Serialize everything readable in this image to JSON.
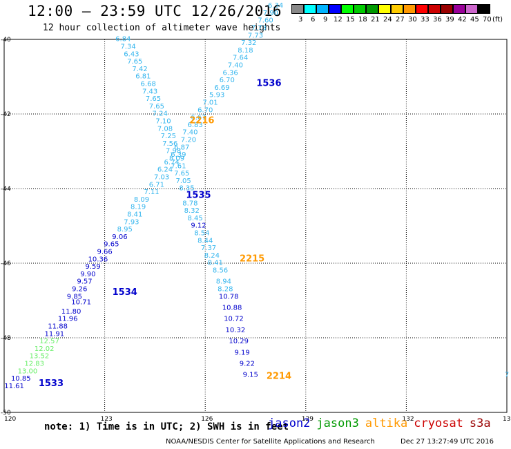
{
  "title": "12:00 – 23:59 UTC 12/26/2016",
  "subtitle": "12 hour collection of altimeter wave heights",
  "legend": {
    "units": "(ft)",
    "bins": [
      {
        "label": "3",
        "color": "#888888"
      },
      {
        "label": "6",
        "color": "#00ffff"
      },
      {
        "label": "9",
        "color": "#00b4ff"
      },
      {
        "label": "12",
        "color": "#0000ff"
      },
      {
        "label": "15",
        "color": "#00ff00"
      },
      {
        "label": "18",
        "color": "#00cc00"
      },
      {
        "label": "21",
        "color": "#009900"
      },
      {
        "label": "24",
        "color": "#ffff00"
      },
      {
        "label": "27",
        "color": "#ffcc00"
      },
      {
        "label": "30",
        "color": "#ff9900"
      },
      {
        "label": "33",
        "color": "#ff0000"
      },
      {
        "label": "36",
        "color": "#cc0000"
      },
      {
        "label": "39",
        "color": "#990000"
      },
      {
        "label": "42",
        "color": "#990099"
      },
      {
        "label": "45",
        "color": "#cc66cc"
      },
      {
        "label": "70",
        "color": "#000000"
      }
    ]
  },
  "axes": {
    "lon_ticks": [
      "120",
      "123",
      "126",
      "129",
      "132",
      "135"
    ],
    "lat_ticks": [
      "-40",
      "-42",
      "-44",
      "-46",
      "-48",
      "-50"
    ],
    "lon_range": [
      120,
      135
    ],
    "lat_range": [
      -40,
      -50
    ],
    "grid": true
  },
  "note": "note: 1) Time is in UTC; 2) SWH is in feet",
  "satellites": [
    {
      "name": "jason2",
      "color": "#0000cc"
    },
    {
      "name": "jason3",
      "color": "#009900"
    },
    {
      "name": "altika",
      "color": "#ff9900"
    },
    {
      "name": "cryosat",
      "color": "#cc0000"
    },
    {
      "name": "s3a",
      "color": "#990000"
    }
  ],
  "footer_left": "NOAA/NESDIS Center for Satellite Applications and Research",
  "footer_right": "Dec 27 13:27:49 UTC 2016",
  "colors": {
    "cyan": "#33b5ee",
    "blue": "#0000cc",
    "green": "#66ee66",
    "orange": "#ff9900"
  },
  "chart_data": {
    "type": "scatter",
    "tracks": [
      {
        "name": "ascending track",
        "points": [
          {
            "lon": 120.3,
            "lat": -49.35,
            "v": "11.61",
            "c": "blue"
          },
          {
            "lon": 120.5,
            "lat": -49.15,
            "v": "10.85",
            "c": "blue"
          },
          {
            "lon": 120.7,
            "lat": -48.95,
            "v": "13.00",
            "c": "green"
          },
          {
            "lon": 120.9,
            "lat": -48.75,
            "v": "12.83",
            "c": "green"
          },
          {
            "lon": 121.05,
            "lat": -48.55,
            "v": "13.52",
            "c": "green"
          },
          {
            "lon": 121.2,
            "lat": -48.35,
            "v": "12.02",
            "c": "green"
          },
          {
            "lon": 121.35,
            "lat": -48.15,
            "v": "12.57",
            "c": "green"
          },
          {
            "lon": 121.5,
            "lat": -47.95,
            "v": "11.91",
            "c": "blue"
          },
          {
            "lon": 121.6,
            "lat": -47.75,
            "v": "11.88",
            "c": "blue"
          },
          {
            "lon": 121.9,
            "lat": -47.55,
            "v": "11.96",
            "c": "blue"
          },
          {
            "lon": 122.0,
            "lat": -47.35,
            "v": "11.80",
            "c": "blue"
          },
          {
            "lon": 122.3,
            "lat": -47.1,
            "v": "10.71",
            "c": "blue"
          },
          {
            "lon": 122.1,
            "lat": -46.95,
            "v": "9.85",
            "c": "blue"
          },
          {
            "lon": 122.25,
            "lat": -46.75,
            "v": "9.26",
            "c": "blue"
          },
          {
            "lon": 122.4,
            "lat": -46.55,
            "v": "9.57",
            "c": "blue"
          },
          {
            "lon": 122.5,
            "lat": -46.35,
            "v": "9.90",
            "c": "blue"
          },
          {
            "lon": 122.65,
            "lat": -46.15,
            "v": "9.59",
            "c": "blue"
          },
          {
            "lon": 122.8,
            "lat": -45.95,
            "v": "10.36",
            "c": "blue"
          },
          {
            "lon": 123.0,
            "lat": -45.75,
            "v": "9.66",
            "c": "blue"
          },
          {
            "lon": 123.2,
            "lat": -45.55,
            "v": "9.65",
            "c": "blue"
          },
          {
            "lon": 123.45,
            "lat": -45.35,
            "v": "9.06",
            "c": "blue"
          },
          {
            "lon": 123.6,
            "lat": -45.15,
            "v": "8.95",
            "c": "cyan"
          },
          {
            "lon": 123.8,
            "lat": -44.95,
            "v": "7.93",
            "c": "cyan"
          },
          {
            "lon": 123.9,
            "lat": -44.75,
            "v": "8.41",
            "c": "cyan"
          },
          {
            "lon": 124.0,
            "lat": -44.55,
            "v": "8.19",
            "c": "cyan"
          },
          {
            "lon": 124.1,
            "lat": -44.35,
            "v": "8.09",
            "c": "cyan"
          },
          {
            "lon": 124.4,
            "lat": -44.15,
            "v": "7.11",
            "c": "cyan"
          },
          {
            "lon": 124.55,
            "lat": -43.95,
            "v": "6.71",
            "c": "cyan"
          },
          {
            "lon": 124.7,
            "lat": -43.75,
            "v": "7.03",
            "c": "cyan"
          },
          {
            "lon": 124.8,
            "lat": -43.55,
            "v": "6.24",
            "c": "cyan"
          },
          {
            "lon": 125.0,
            "lat": -43.35,
            "v": "6.74",
            "c": "cyan"
          },
          {
            "lon": 125.2,
            "lat": -43.15,
            "v": "6.39",
            "c": "cyan"
          },
          {
            "lon": 125.3,
            "lat": -42.95,
            "v": "6.87",
            "c": "cyan"
          },
          {
            "lon": 125.5,
            "lat": -42.75,
            "v": "7.20",
            "c": "cyan"
          },
          {
            "lon": 125.55,
            "lat": -42.55,
            "v": "7.40",
            "c": "cyan"
          },
          {
            "lon": 125.7,
            "lat": -42.35,
            "v": "6.83",
            "c": "cyan"
          },
          {
            "lon": 125.8,
            "lat": -42.15,
            "v": "6.67",
            "c": "cyan"
          },
          {
            "lon": 126.0,
            "lat": -41.95,
            "v": "6.70",
            "c": "cyan"
          },
          {
            "lon": 126.15,
            "lat": -41.75,
            "v": "7.01",
            "c": "cyan"
          },
          {
            "lon": 126.35,
            "lat": -41.55,
            "v": "5.93",
            "c": "cyan"
          },
          {
            "lon": 126.5,
            "lat": -41.35,
            "v": "6.69",
            "c": "cyan"
          },
          {
            "lon": 126.65,
            "lat": -41.15,
            "v": "6.70",
            "c": "cyan"
          },
          {
            "lon": 126.75,
            "lat": -40.95,
            "v": "6.36",
            "c": "cyan"
          },
          {
            "lon": 126.9,
            "lat": -40.75,
            "v": "7.40",
            "c": "cyan"
          },
          {
            "lon": 127.05,
            "lat": -40.55,
            "v": "7.64",
            "c": "cyan"
          },
          {
            "lon": 127.2,
            "lat": -40.35,
            "v": "8.18",
            "c": "cyan"
          },
          {
            "lon": 127.3,
            "lat": -40.15,
            "v": "7.32",
            "c": "cyan"
          },
          {
            "lon": 127.5,
            "lat": -39.95,
            "v": "7.73",
            "c": "cyan"
          },
          {
            "lon": 127.6,
            "lat": -39.75,
            "v": "7.73",
            "c": "cyan"
          },
          {
            "lon": 127.8,
            "lat": -39.55,
            "v": "7.60",
            "c": "cyan"
          },
          {
            "lon": 127.95,
            "lat": -39.35,
            "v": "7.90",
            "c": "cyan"
          },
          {
            "lon": 128.1,
            "lat": -39.15,
            "v": "6.34",
            "c": "cyan"
          }
        ]
      },
      {
        "name": "descending track",
        "points": [
          {
            "lon": 123.55,
            "lat": -40.05,
            "v": "6.84",
            "c": "cyan"
          },
          {
            "lon": 123.7,
            "lat": -40.25,
            "v": "7.34",
            "c": "cyan"
          },
          {
            "lon": 123.8,
            "lat": -40.45,
            "v": "6.43",
            "c": "cyan"
          },
          {
            "lon": 123.9,
            "lat": -40.65,
            "v": "7.65",
            "c": "cyan"
          },
          {
            "lon": 124.05,
            "lat": -40.85,
            "v": "7.42",
            "c": "cyan"
          },
          {
            "lon": 124.15,
            "lat": -41.05,
            "v": "6.81",
            "c": "cyan"
          },
          {
            "lon": 124.3,
            "lat": -41.25,
            "v": "6.68",
            "c": "cyan"
          },
          {
            "lon": 124.35,
            "lat": -41.45,
            "v": "7.43",
            "c": "cyan"
          },
          {
            "lon": 124.45,
            "lat": -41.65,
            "v": "7.65",
            "c": "cyan"
          },
          {
            "lon": 124.55,
            "lat": -41.85,
            "v": "7.65",
            "c": "cyan"
          },
          {
            "lon": 124.65,
            "lat": -42.05,
            "v": "7.24",
            "c": "cyan"
          },
          {
            "lon": 124.75,
            "lat": -42.25,
            "v": "7.10",
            "c": "cyan"
          },
          {
            "lon": 124.8,
            "lat": -42.45,
            "v": "7.08",
            "c": "cyan"
          },
          {
            "lon": 124.9,
            "lat": -42.65,
            "v": "7.25",
            "c": "cyan"
          },
          {
            "lon": 124.95,
            "lat": -42.85,
            "v": "7.56",
            "c": "cyan"
          },
          {
            "lon": 125.05,
            "lat": -43.05,
            "v": "7.98",
            "c": "cyan"
          },
          {
            "lon": 125.15,
            "lat": -43.25,
            "v": "8.09",
            "c": "cyan"
          },
          {
            "lon": 125.2,
            "lat": -43.45,
            "v": "7.61",
            "c": "cyan"
          },
          {
            "lon": 125.3,
            "lat": -43.65,
            "v": "7.65",
            "c": "cyan"
          },
          {
            "lon": 125.35,
            "lat": -43.85,
            "v": "7.05",
            "c": "cyan"
          },
          {
            "lon": 125.45,
            "lat": -44.05,
            "v": "8.35",
            "c": "cyan"
          },
          {
            "lon": 125.55,
            "lat": -44.45,
            "v": "8.78",
            "c": "cyan"
          },
          {
            "lon": 125.6,
            "lat": -44.65,
            "v": "8.32",
            "c": "cyan"
          },
          {
            "lon": 125.7,
            "lat": -44.85,
            "v": "8.45",
            "c": "cyan"
          },
          {
            "lon": 125.8,
            "lat": -45.05,
            "v": "9.12",
            "c": "blue"
          },
          {
            "lon": 125.9,
            "lat": -45.25,
            "v": "8.54",
            "c": "cyan"
          },
          {
            "lon": 126.0,
            "lat": -45.45,
            "v": "8.44",
            "c": "cyan"
          },
          {
            "lon": 126.1,
            "lat": -45.65,
            "v": "7.37",
            "c": "cyan"
          },
          {
            "lon": 126.2,
            "lat": -45.85,
            "v": "8.24",
            "c": "cyan"
          },
          {
            "lon": 126.3,
            "lat": -46.05,
            "v": "8.41",
            "c": "cyan"
          },
          {
            "lon": 126.45,
            "lat": -46.25,
            "v": "8.56",
            "c": "cyan"
          },
          {
            "lon": 126.55,
            "lat": -46.55,
            "v": "8.94",
            "c": "cyan"
          },
          {
            "lon": 126.6,
            "lat": -46.75,
            "v": "8.28",
            "c": "cyan"
          },
          {
            "lon": 126.7,
            "lat": -46.95,
            "v": "10.78",
            "c": "blue"
          },
          {
            "lon": 126.8,
            "lat": -47.25,
            "v": "10.88",
            "c": "blue"
          },
          {
            "lon": 126.85,
            "lat": -47.55,
            "v": "10.72",
            "c": "blue"
          },
          {
            "lon": 126.9,
            "lat": -47.85,
            "v": "10.32",
            "c": "blue"
          },
          {
            "lon": 127.0,
            "lat": -48.15,
            "v": "10.29",
            "c": "blue"
          },
          {
            "lon": 127.1,
            "lat": -48.45,
            "v": "9.19",
            "c": "blue"
          },
          {
            "lon": 127.25,
            "lat": -48.75,
            "v": "9.22",
            "c": "blue"
          },
          {
            "lon": 127.35,
            "lat": -49.05,
            "v": "9.15",
            "c": "blue"
          }
        ]
      },
      {
        "name": "edge point",
        "points": [
          {
            "lon": 135.0,
            "lat": -49.05,
            "v": "7",
            "c": "cyan"
          }
        ]
      }
    ],
    "time_labels": [
      {
        "lon": 121.4,
        "lat": -49.3,
        "v": "1533",
        "c": "blue"
      },
      {
        "lon": 123.6,
        "lat": -46.85,
        "v": "1534",
        "c": "blue"
      },
      {
        "lon": 125.8,
        "lat": -44.25,
        "v": "1535",
        "c": "blue"
      },
      {
        "lon": 127.9,
        "lat": -41.25,
        "v": "1536",
        "c": "blue"
      },
      {
        "lon": 125.9,
        "lat": -42.25,
        "v": "2216",
        "c": "orange"
      },
      {
        "lon": 127.4,
        "lat": -45.95,
        "v": "2215",
        "c": "orange"
      },
      {
        "lon": 128.2,
        "lat": -49.1,
        "v": "2214",
        "c": "orange"
      }
    ]
  }
}
